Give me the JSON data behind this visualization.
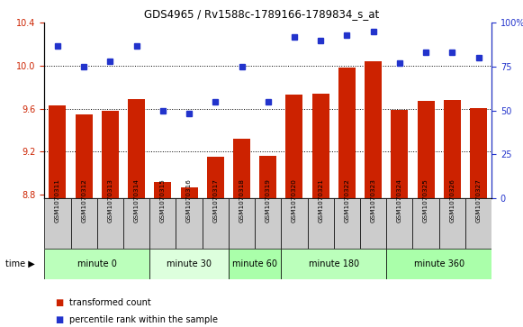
{
  "title": "GDS4965 / Rv1588c-1789166-1789834_s_at",
  "samples": [
    "GSM1070311",
    "GSM1070312",
    "GSM1070313",
    "GSM1070314",
    "GSM1070315",
    "GSM1070316",
    "GSM1070317",
    "GSM1070318",
    "GSM1070319",
    "GSM1070320",
    "GSM1070321",
    "GSM1070322",
    "GSM1070323",
    "GSM1070324",
    "GSM1070325",
    "GSM1070326",
    "GSM1070327"
  ],
  "bar_values": [
    9.63,
    9.55,
    9.58,
    9.69,
    8.92,
    8.87,
    9.15,
    9.32,
    9.16,
    9.73,
    9.74,
    9.98,
    10.04,
    9.59,
    9.67,
    9.68,
    9.61
  ],
  "dot_values": [
    87,
    75,
    78,
    87,
    50,
    48,
    55,
    75,
    55,
    92,
    90,
    93,
    95,
    77,
    83,
    83,
    80
  ],
  "groups": [
    {
      "label": "minute 0",
      "start": 0,
      "end": 4,
      "color": "#bbffbb"
    },
    {
      "label": "minute 30",
      "start": 4,
      "end": 7,
      "color": "#ddffdd"
    },
    {
      "label": "minute 60",
      "start": 7,
      "end": 9,
      "color": "#aaffaa"
    },
    {
      "label": "minute 180",
      "start": 9,
      "end": 13,
      "color": "#bbffbb"
    },
    {
      "label": "minute 360",
      "start": 13,
      "end": 17,
      "color": "#aaffaa"
    }
  ],
  "ylim_left": [
    8.77,
    10.4
  ],
  "ylim_right": [
    0,
    100
  ],
  "yticks_left": [
    8.8,
    9.2,
    9.6,
    10.0,
    10.4
  ],
  "yticks_right": [
    0,
    25,
    50,
    75,
    100
  ],
  "bar_color": "#cc2200",
  "dot_color": "#2233cc",
  "grid_yticks": [
    9.2,
    9.6,
    10.0
  ],
  "legend_bar": "transformed count",
  "legend_dot": "percentile rank within the sample"
}
